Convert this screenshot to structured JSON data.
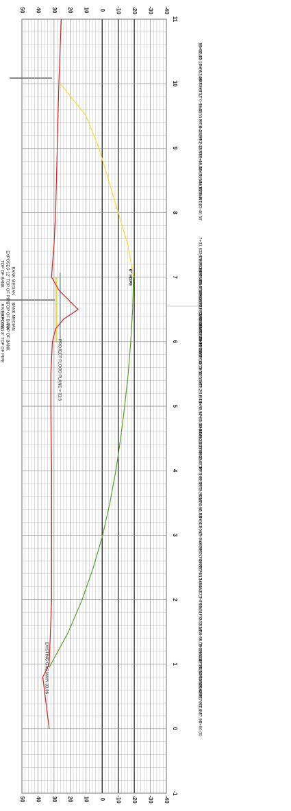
{
  "chart_data": {
    "type": "line",
    "orientation": "rotated",
    "annotations": [
      "6\" HDPE",
      "PROJECT FLOOD PLANE = 31.5",
      "EXISTING GAS MAIN 33.36"
    ],
    "notes": [
      "TOP OF BANK",
      "EXPOSED 12\" TOP OF PIPE",
      "BANK MEDIAN",
      "RIVER FLOW",
      "TOP OF BANK",
      "BANK MEDIAN",
      "EXPOSED 8\" TOP OF PIPE",
      "TOP OF BANK"
    ],
    "xlim": [
      -1,
      11
    ],
    "xticks": [
      -1,
      0,
      1,
      2,
      3,
      4,
      5,
      6,
      7,
      8,
      9,
      10,
      11
    ],
    "ylim": [
      -40,
      50
    ],
    "yticks": [
      50,
      40,
      30,
      20,
      10,
      0,
      -10,
      -20,
      -30,
      -40
    ],
    "reference_lines": [
      0,
      -10,
      -20
    ],
    "grid": true,
    "yminorticks": [
      48,
      46,
      44,
      42,
      38,
      36,
      34,
      32,
      28,
      26,
      24,
      22,
      18,
      16,
      14,
      12,
      8,
      6,
      4,
      2,
      -2,
      -4,
      -6,
      -8,
      -12,
      -14,
      -16,
      -18,
      -22,
      -24,
      -26,
      -28,
      -32,
      -34,
      -36,
      -38
    ],
    "xminorticks": [
      -0.8,
      -0.6,
      -0.4,
      -0.2,
      0.2,
      0.4,
      0.6,
      0.8,
      1.2,
      1.4,
      1.6,
      1.8,
      2.2,
      2.4,
      2.6,
      2.8,
      3.2,
      3.4,
      3.6,
      3.8,
      4.2,
      4.4,
      4.6,
      4.8,
      5.2,
      5.4,
      5.6,
      5.8,
      6.2,
      6.4,
      6.6,
      6.8,
      7.2,
      7.4,
      7.6,
      7.8,
      8.2,
      8.4,
      8.6,
      8.8,
      9.2,
      9.4,
      9.6,
      9.8,
      10.2,
      10.4,
      10.6,
      10.8
    ],
    "series": [
      {
        "color": "#d62020",
        "x": [
          0,
          0.8,
          1,
          2,
          3,
          4,
          5,
          5.5,
          6,
          6.2,
          6.35,
          6.5,
          6.65,
          6.8,
          7,
          7.2,
          7.5,
          8,
          9,
          10,
          11
        ],
        "values": [
          33,
          37,
          33,
          31.5,
          31.5,
          31.5,
          32,
          32,
          31,
          29,
          24,
          15,
          21,
          27,
          31.5,
          31,
          30,
          29,
          28,
          27,
          25.5
        ]
      },
      {
        "color": "#5aa02c",
        "x": [
          0.95,
          1.5,
          2,
          2.5,
          3,
          3.5,
          4,
          4.5,
          5,
          5.5,
          6,
          6.5,
          7
        ],
        "values": [
          33,
          21,
          12.5,
          5.5,
          -0.3,
          -4.8,
          -8.5,
          -11.5,
          -14,
          -16.2,
          -17.8,
          -19,
          -19.5
        ]
      },
      {
        "color": "#f0e030",
        "x": [
          7,
          7.5,
          8,
          8.5,
          9,
          9.5,
          10
        ],
        "values": [
          -19.5,
          -16,
          -10,
          -4,
          2,
          10,
          26
        ]
      }
    ],
    "station_labels": [
      {
        "station": 10.51,
        "label": "10+51.00"
      },
      {
        "station": 10.33,
        "label": "10+33.05 LT 0-17.06'"
      },
      {
        "station": 10.06,
        "label": "10+06.14 RT 8-9.53'"
      },
      {
        "station": 9.81,
        "label": "9+80.67 LT 0-13.35'"
      },
      {
        "station": 9.41,
        "label": "9+40.55 RT 0-48.17'"
      },
      {
        "station": 9.16,
        "label": "9+16.27 RT 2-18.93'"
      },
      {
        "station": 8.93,
        "label": "8+93.42 RT 1-18.53'"
      },
      {
        "station": 8.6,
        "label": "8+60.44 LT 8-44.35'"
      },
      {
        "station": 8.39,
        "label": "8+38.57 LT 28-40.59'"
      },
      {
        "station": 8.18,
        "label": "8+18.35 RT 23-46.50'"
      },
      {
        "station": 7.32,
        "label": "7+31.83 LT 25-37.65'"
      },
      {
        "station": 7.09,
        "label": "7+08.79 RT 23-03.45'"
      },
      {
        "station": 7.01,
        "label": "7+01.33 RT 23-47.42'"
      },
      {
        "station": 6.84,
        "label": "6+83.89 LT 27-19.65'"
      },
      {
        "station": 6.51,
        "label": "6+51.11 LT 18-67.59'"
      },
      {
        "station": 6.46,
        "label": "6+46.22 RT 25-03.52'"
      },
      {
        "station": 6.34,
        "label": "6+33.93 RT 11-97.53'"
      },
      {
        "station": 6.13,
        "label": "6+13.14 RT 49-11.75'"
      },
      {
        "station": 6.07,
        "label": "6+06.88 LT 00-27.40'"
      },
      {
        "station": 5.93,
        "label": "5+92.70 RT 35-27.40'"
      },
      {
        "station": 5.77,
        "label": "5+76.67 LT 16-13.55'"
      },
      {
        "station": 5.6,
        "label": "5+59.51 LT 1-21.52'"
      },
      {
        "station": 5.33,
        "label": "5+32.51 RT 2-18.45'"
      },
      {
        "station": 5.13,
        "label": "5+13.21 RT 0-33.92'"
      },
      {
        "station": 4.8,
        "label": "4+80.17 LT 0-85.08'"
      },
      {
        "station": 4.61,
        "label": "4+60.57 RT 2-34.41'"
      },
      {
        "station": 4.44,
        "label": "4+44.43 LT 1-53.45'"
      },
      {
        "station": 4.28,
        "label": "4+27.63 RT 2-40.30'"
      },
      {
        "station": 4.02,
        "label": "4+02.07 RT 2-32.21'"
      },
      {
        "station": 3.79,
        "label": "3+78.89 RT 2-18.55'"
      },
      {
        "station": 3.54,
        "label": "3+53.80 LT 0-81.38'"
      },
      {
        "station": 3.31,
        "label": "3+30.56 RT 0-07.06'"
      },
      {
        "station": 3.02,
        "label": "3+01.80 LT 0-40.53'"
      },
      {
        "station": 2.75,
        "label": "2+74.95 RT 0-04.85'"
      },
      {
        "station": 2.54,
        "label": "2+53.70 RT 1-43.34'"
      },
      {
        "station": 2.34,
        "label": "2+33.79 LT 0-48.17'"
      },
      {
        "station": 2.05,
        "label": "2+05.40 LT 0-99.61'"
      },
      {
        "station": 1.78,
        "label": "1+78.30 LT 0-52.50'"
      },
      {
        "station": 1.54,
        "label": "1+53.70 LT 0-38.05'"
      },
      {
        "station": 1.31,
        "label": "1+30.85 LT 0-10.04'"
      },
      {
        "station": 1.03,
        "label": "1+02.63 LT 26-17.55'"
      },
      {
        "station": 0.94,
        "label": "0+94.22 LT 54-47.32'"
      },
      {
        "station": 0.78,
        "label": "0+78.28 RT 52-14.96'"
      },
      {
        "station": 0.49,
        "label": "0+48.98 RT 6-11.58'"
      },
      {
        "station": 0.37,
        "label": "0+37.17 RT 6-17.96'"
      },
      {
        "station": 0,
        "label": "0+00.00"
      }
    ]
  }
}
